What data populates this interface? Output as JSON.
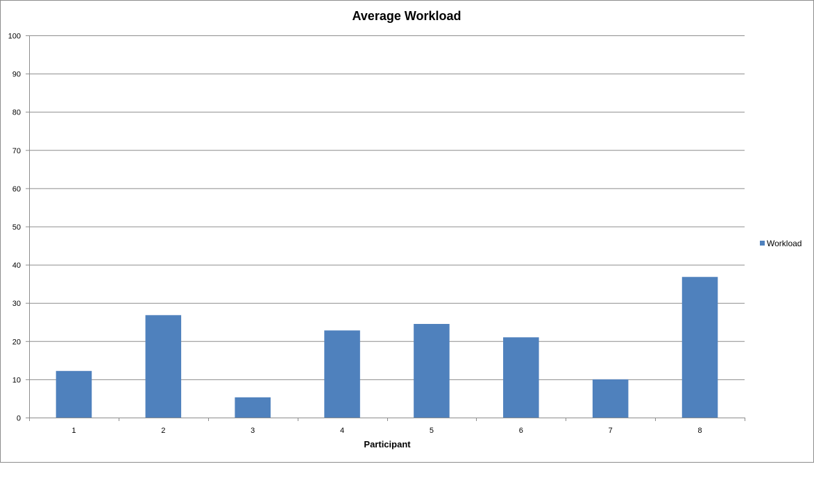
{
  "chart_data": {
    "type": "bar",
    "title": "Average Workload",
    "xlabel": "Participant",
    "ylabel": "",
    "categories": [
      "1",
      "2",
      "3",
      "4",
      "5",
      "6",
      "7",
      "8"
    ],
    "series": [
      {
        "name": "Workload",
        "values": [
          12.2,
          26.8,
          5.3,
          22.8,
          24.5,
          21.0,
          10.0,
          36.8
        ],
        "color": "#4f81bd"
      }
    ],
    "ylim": [
      0,
      100
    ],
    "yticks": [
      0,
      10,
      20,
      30,
      40,
      50,
      60,
      70,
      80,
      90,
      100
    ],
    "grid": true,
    "legend_position": "right"
  }
}
